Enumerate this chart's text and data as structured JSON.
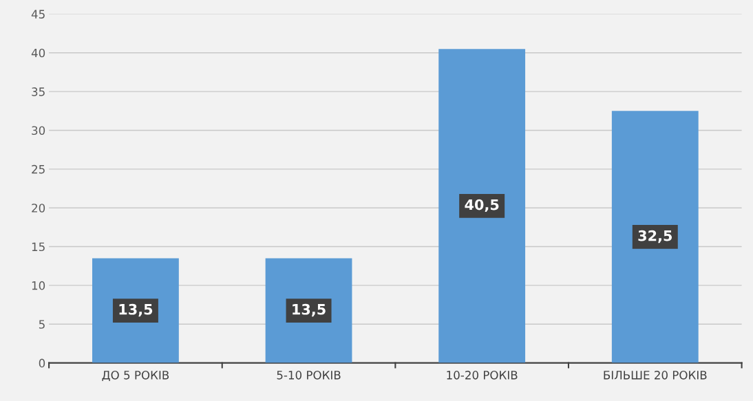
{
  "chart_data": {
    "type": "bar",
    "categories": [
      "ДО 5 РОКІВ",
      "5-10 РОКІВ",
      "10-20 РОКІВ",
      "БІЛЬШЕ 20 РОКІВ"
    ],
    "values": [
      13.5,
      13.5,
      40.5,
      32.5
    ],
    "value_labels": [
      "13,5",
      "13,5",
      "40,5",
      "32,5"
    ],
    "color": "#5b9bd5",
    "ylim": [
      0,
      45
    ],
    "yticks": [
      0,
      5,
      10,
      15,
      20,
      25,
      30,
      35,
      40,
      45
    ],
    "grid": "y"
  }
}
